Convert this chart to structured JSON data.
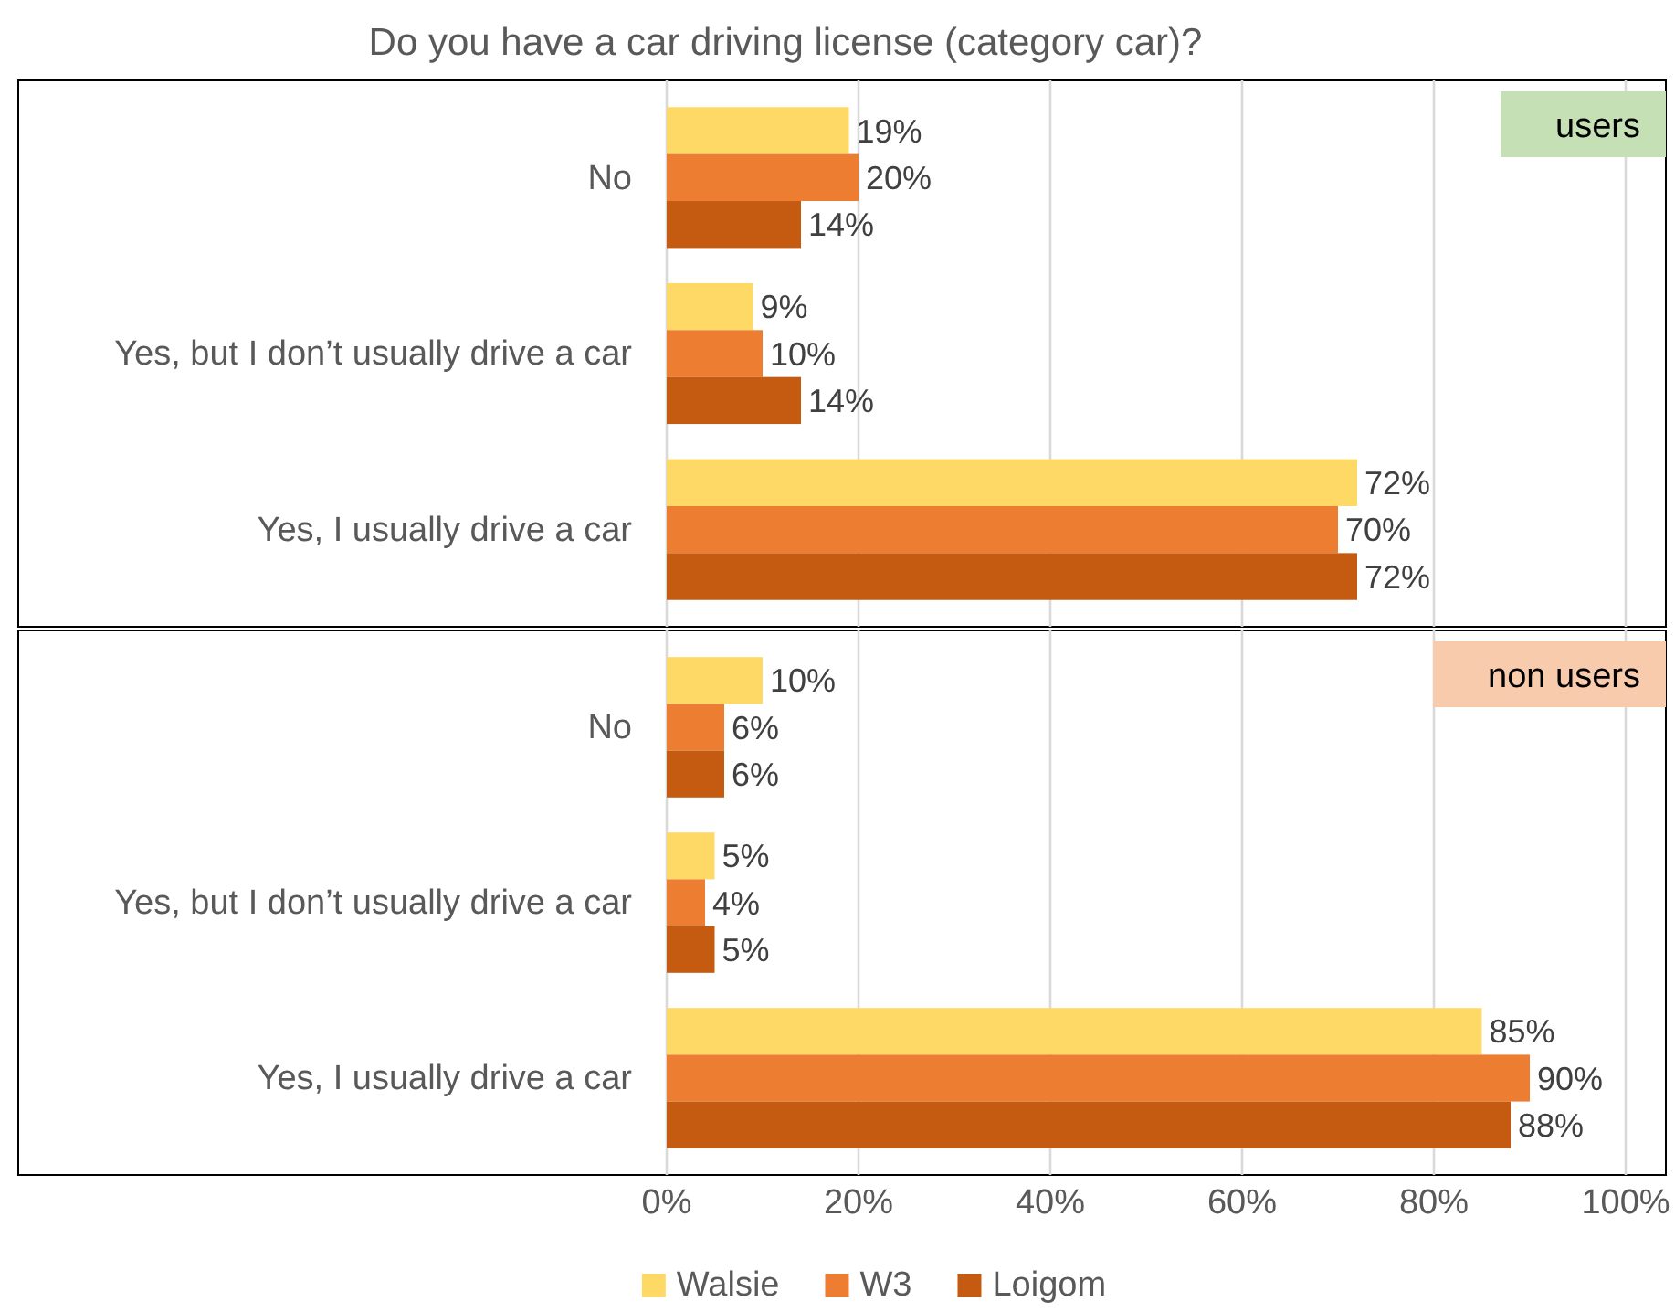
{
  "chart_data": [
    {
      "type": "bar",
      "orientation": "horizontal",
      "title": "Do you have a car driving license (category car)?",
      "annotations": [
        "users"
      ],
      "categories": [
        "No",
        "Yes, but I don’t usually drive a car",
        "Yes, I usually drive a car"
      ],
      "series": [
        {
          "color": "#ffd966",
          "values": [
            19,
            9,
            72
          ],
          "value_labels": [
            "19%",
            "9%",
            "72%"
          ]
        },
        {
          "color": "#ed7d31",
          "values": [
            20,
            10,
            70
          ],
          "value_labels": [
            "20%",
            "10%",
            "70%"
          ]
        },
        {
          "color": "#c55a11",
          "values": [
            14,
            14,
            72
          ],
          "value_labels": [
            "14%",
            "14%",
            "72%"
          ]
        }
      ],
      "xlim": [
        0,
        100
      ],
      "xticks": [
        {
          "value": 0,
          "label": null
        },
        {
          "value": 20,
          "label": null
        },
        {
          "value": 40,
          "label": null
        },
        {
          "value": 60,
          "label": null
        },
        {
          "value": 80,
          "label": null
        },
        {
          "value": 100,
          "label": null
        }
      ],
      "grid": "x",
      "tick_labels": "y"
    },
    {
      "type": "bar",
      "orientation": "horizontal",
      "annotations": [
        "non users"
      ],
      "categories": [
        "No",
        "Yes, but I don’t usually drive a car",
        "Yes, I usually drive a car"
      ],
      "series": [
        {
          "name": "Walsie",
          "color": "#ffd966",
          "values": [
            10,
            5,
            85
          ],
          "value_labels": [
            "10%",
            "5%",
            "85%"
          ]
        },
        {
          "name": "W3",
          "color": "#ed7d31",
          "values": [
            6,
            4,
            90
          ],
          "value_labels": [
            "6%",
            "4%",
            "90%"
          ]
        },
        {
          "name": "Loigom",
          "color": "#c55a11",
          "values": [
            6,
            5,
            88
          ],
          "value_labels": [
            "6%",
            "5%",
            "88%"
          ]
        }
      ],
      "xlim": [
        0,
        100
      ],
      "xticks": [
        {
          "value": 0,
          "label": "0%"
        },
        {
          "value": 20,
          "label": "20%"
        },
        {
          "value": 40,
          "label": "40%"
        },
        {
          "value": 60,
          "label": "60%"
        },
        {
          "value": 80,
          "label": "80%"
        },
        {
          "value": 100,
          "label": "100%"
        }
      ],
      "grid": "x",
      "legend": "bottom"
    }
  ]
}
